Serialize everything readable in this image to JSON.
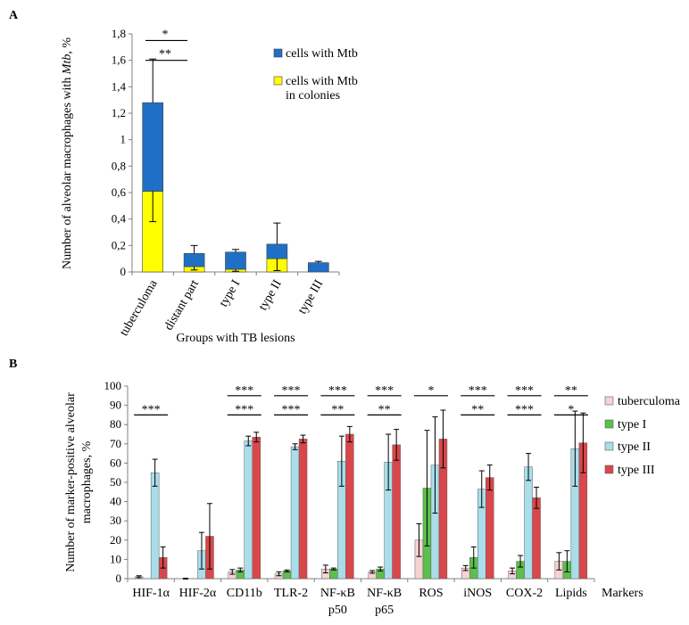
{
  "chart_data": [
    {
      "type": "bar",
      "stacked": true,
      "panel_label": "A",
      "ylabel_pre": "Number of alveolar macrophages with ",
      "ylabel_em": "Mtb",
      "ylabel_post": ", %",
      "xlabel": "Groups with TB lesions",
      "ylim": [
        0,
        1.8
      ],
      "yticks": [
        "0",
        "0,2",
        "0,4",
        "0,6",
        "0,8",
        "1",
        "1,2",
        "1,4",
        "1,6",
        "1,8"
      ],
      "categories": [
        "tuberculoma",
        "distant part",
        "type I",
        "type II",
        "type III"
      ],
      "series": [
        {
          "name": "cells with Mtb in colonies",
          "values": [
            0.61,
            0.04,
            0.02,
            0.1,
            0.0
          ],
          "color": "#ffff00"
        },
        {
          "name": "cells with Mtb",
          "values": [
            0.67,
            0.1,
            0.13,
            0.11,
            0.07
          ],
          "color": "#1f6fc6"
        }
      ],
      "errors": {
        "low": [
          0.38,
          0.015,
          0.005,
          0.01,
          0.0
        ],
        "high": [
          1.61,
          0.2,
          0.17,
          0.37,
          0.08
        ]
      },
      "legend": {
        "placement": "top-right",
        "entries": [
          {
            "color": "#1f6fc6",
            "line1": "cells with Mtb",
            "line2": ""
          },
          {
            "color": "#ffff00",
            "line1": "cells with Mtb",
            "line2": "in colonies"
          }
        ]
      },
      "significance": [
        {
          "label": "*"
        },
        {
          "label": "**"
        }
      ]
    },
    {
      "type": "bar",
      "panel_label": "B",
      "ylabel_line1": "Number of marker-positive alveolar",
      "ylabel_line2": "macrophages, %",
      "xlabel": "Markers",
      "ylim": [
        0,
        100
      ],
      "yticks": [
        "0",
        "10",
        "20",
        "30",
        "40",
        "50",
        "60",
        "70",
        "80",
        "90",
        "100"
      ],
      "categories": [
        {
          "l1": "HIF-1α",
          "l2": ""
        },
        {
          "l1": "HIF-2α",
          "l2": ""
        },
        {
          "l1": "CD11b",
          "l2": ""
        },
        {
          "l1": "TLR-2",
          "l2": ""
        },
        {
          "l1": "NF-κB",
          "l2": "p50"
        },
        {
          "l1": "NF-κB",
          "l2": "p65"
        },
        {
          "l1": "ROS",
          "l2": ""
        },
        {
          "l1": "iNOS",
          "l2": ""
        },
        {
          "l1": "COX-2",
          "l2": ""
        },
        {
          "l1": "Lipids",
          "l2": ""
        }
      ],
      "series": [
        {
          "name": "tuberculoma",
          "color": "#f6d2d2",
          "values": [
            1,
            0,
            3.5,
            2.5,
            5,
            3.5,
            20,
            5.5,
            4,
            9
          ],
          "err": [
            0.5,
            0.2,
            1.2,
            1.0,
            2,
            0.7,
            8.5,
            1.3,
            1.5,
            4.5
          ]
        },
        {
          "name": "type I",
          "color": "#5cbf4c",
          "values": [
            0,
            0,
            4.5,
            4,
            5,
            5,
            47,
            11,
            9,
            9
          ],
          "err": [
            0,
            0,
            1,
            0.5,
            0.5,
            1,
            30,
            5.5,
            3,
            5.5
          ]
        },
        {
          "name": "type II",
          "color": "#a9ddea",
          "values": [
            55,
            14.5,
            71.5,
            68.5,
            61,
            60.5,
            59,
            46.5,
            58,
            67.5
          ],
          "err": [
            7,
            9.5,
            2.5,
            1.5,
            13,
            14.5,
            25,
            9.5,
            7,
            19.5
          ]
        },
        {
          "name": "type III",
          "color": "#d9474b",
          "values": [
            11,
            22,
            73.5,
            72.5,
            75,
            69.5,
            72.5,
            52.5,
            42,
            70.5
          ],
          "err": [
            5.5,
            17,
            2.5,
            2,
            4,
            8,
            15,
            6.5,
            5.5,
            15.5
          ]
        }
      ],
      "significance": [
        {
          "cat": 0,
          "from": 0,
          "to": 3,
          "label": "***",
          "y": 85
        },
        {
          "cat": 2,
          "from": 0,
          "to": 3,
          "label": "***",
          "y": 85
        },
        {
          "cat": 2,
          "from": 0,
          "to": 3,
          "label": "***",
          "y": 95
        },
        {
          "cat": 3,
          "from": 0,
          "to": 3,
          "label": "***",
          "y": 85
        },
        {
          "cat": 3,
          "from": 0,
          "to": 3,
          "label": "***",
          "y": 95
        },
        {
          "cat": 4,
          "from": 0,
          "to": 3,
          "label": "**",
          "y": 85
        },
        {
          "cat": 4,
          "from": 0,
          "to": 3,
          "label": "***",
          "y": 95
        },
        {
          "cat": 5,
          "from": 0,
          "to": 3,
          "label": "**",
          "y": 85
        },
        {
          "cat": 5,
          "from": 0,
          "to": 3,
          "label": "***",
          "y": 95
        },
        {
          "cat": 6,
          "from": 0,
          "to": 3,
          "label": "*",
          "y": 95
        },
        {
          "cat": 7,
          "from": 0,
          "to": 3,
          "label": "**",
          "y": 85
        },
        {
          "cat": 7,
          "from": 0,
          "to": 3,
          "label": "***",
          "y": 95
        },
        {
          "cat": 8,
          "from": 0,
          "to": 3,
          "label": "***",
          "y": 85
        },
        {
          "cat": 8,
          "from": 0,
          "to": 3,
          "label": "***",
          "y": 95
        },
        {
          "cat": 9,
          "from": 0,
          "to": 3,
          "label": "*",
          "y": 85
        },
        {
          "cat": 9,
          "from": 0,
          "to": 3,
          "label": "**",
          "y": 95
        }
      ],
      "legend": {
        "placement": "right"
      }
    }
  ]
}
